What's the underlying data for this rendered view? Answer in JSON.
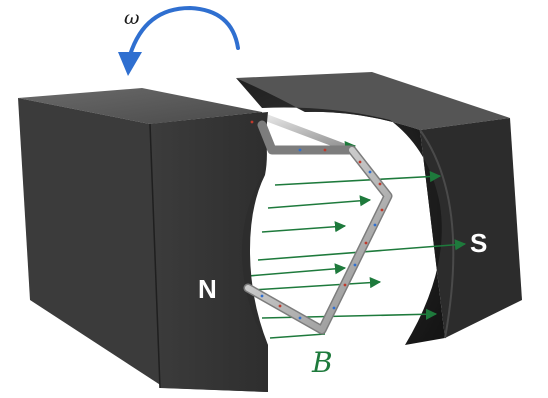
{
  "labels": {
    "angular_velocity": "ω",
    "north_pole": "N",
    "south_pole": "S",
    "magnetic_field": "B"
  },
  "colors": {
    "magnet_top": "#5a5a5a",
    "magnet_front": "#3a3a3a",
    "magnet_side": "#2b2b2b",
    "field_lines": "#1e7a3c",
    "rotation_arrow": "#2f6fd0",
    "coil": "#c9c9c9"
  },
  "icons": {
    "rotation": "curved-arrow-icon"
  }
}
